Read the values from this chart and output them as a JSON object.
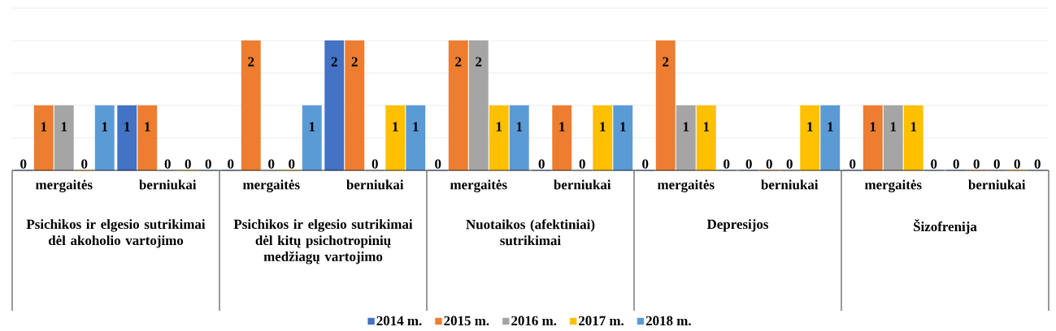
{
  "chart_data": {
    "type": "bar",
    "categories": [
      "mergaitės",
      "berniukai",
      "mergaitės",
      "berniukai",
      "mergaitės",
      "berniukai",
      "mergaitės",
      "berniukai",
      "mergaitės",
      "berniukai"
    ],
    "annotations": [
      "Psichikos ir elgesio sutrikimai dėl akoholio vartojimo",
      "Psichikos ir elgesio sutrikimai dėl kitų psichotropinių medžiagų vartojimo",
      "Nuotaikos (afektiniai) sutrikimai",
      "Depresijos",
      "Šizofrenija"
    ],
    "series": [
      {
        "name": "2014 m.",
        "color": "#4472c4",
        "values": [
          0,
          1,
          0,
          2,
          0,
          0,
          0,
          0,
          0,
          0
        ]
      },
      {
        "name": "2015 m.",
        "color": "#ed7d31",
        "values": [
          1,
          1,
          2,
          2,
          2,
          1,
          2,
          0,
          1,
          0
        ]
      },
      {
        "name": "2016 m.",
        "color": "#a5a5a5",
        "values": [
          1,
          0,
          0,
          0,
          2,
          0,
          1,
          0,
          1,
          0
        ]
      },
      {
        "name": "2017 m.",
        "color": "#ffc000",
        "values": [
          0,
          0,
          0,
          1,
          1,
          1,
          1,
          1,
          1,
          0
        ]
      },
      {
        "name": "2018 m.",
        "color": "#5b9bd5",
        "values": [
          1,
          0,
          1,
          1,
          1,
          1,
          0,
          1,
          0,
          0
        ]
      }
    ],
    "ylim": [
      0,
      2.5
    ],
    "yticks": [
      {
        "value": 0,
        "label": null
      },
      {
        "value": 0.5,
        "label": null
      },
      {
        "value": 1,
        "label": null
      },
      {
        "value": 1.5,
        "label": null
      },
      {
        "value": 2,
        "label": null
      },
      {
        "value": 2.5,
        "label": null
      }
    ],
    "grid": "y",
    "legend": "bottom",
    "data_labels": true
  }
}
